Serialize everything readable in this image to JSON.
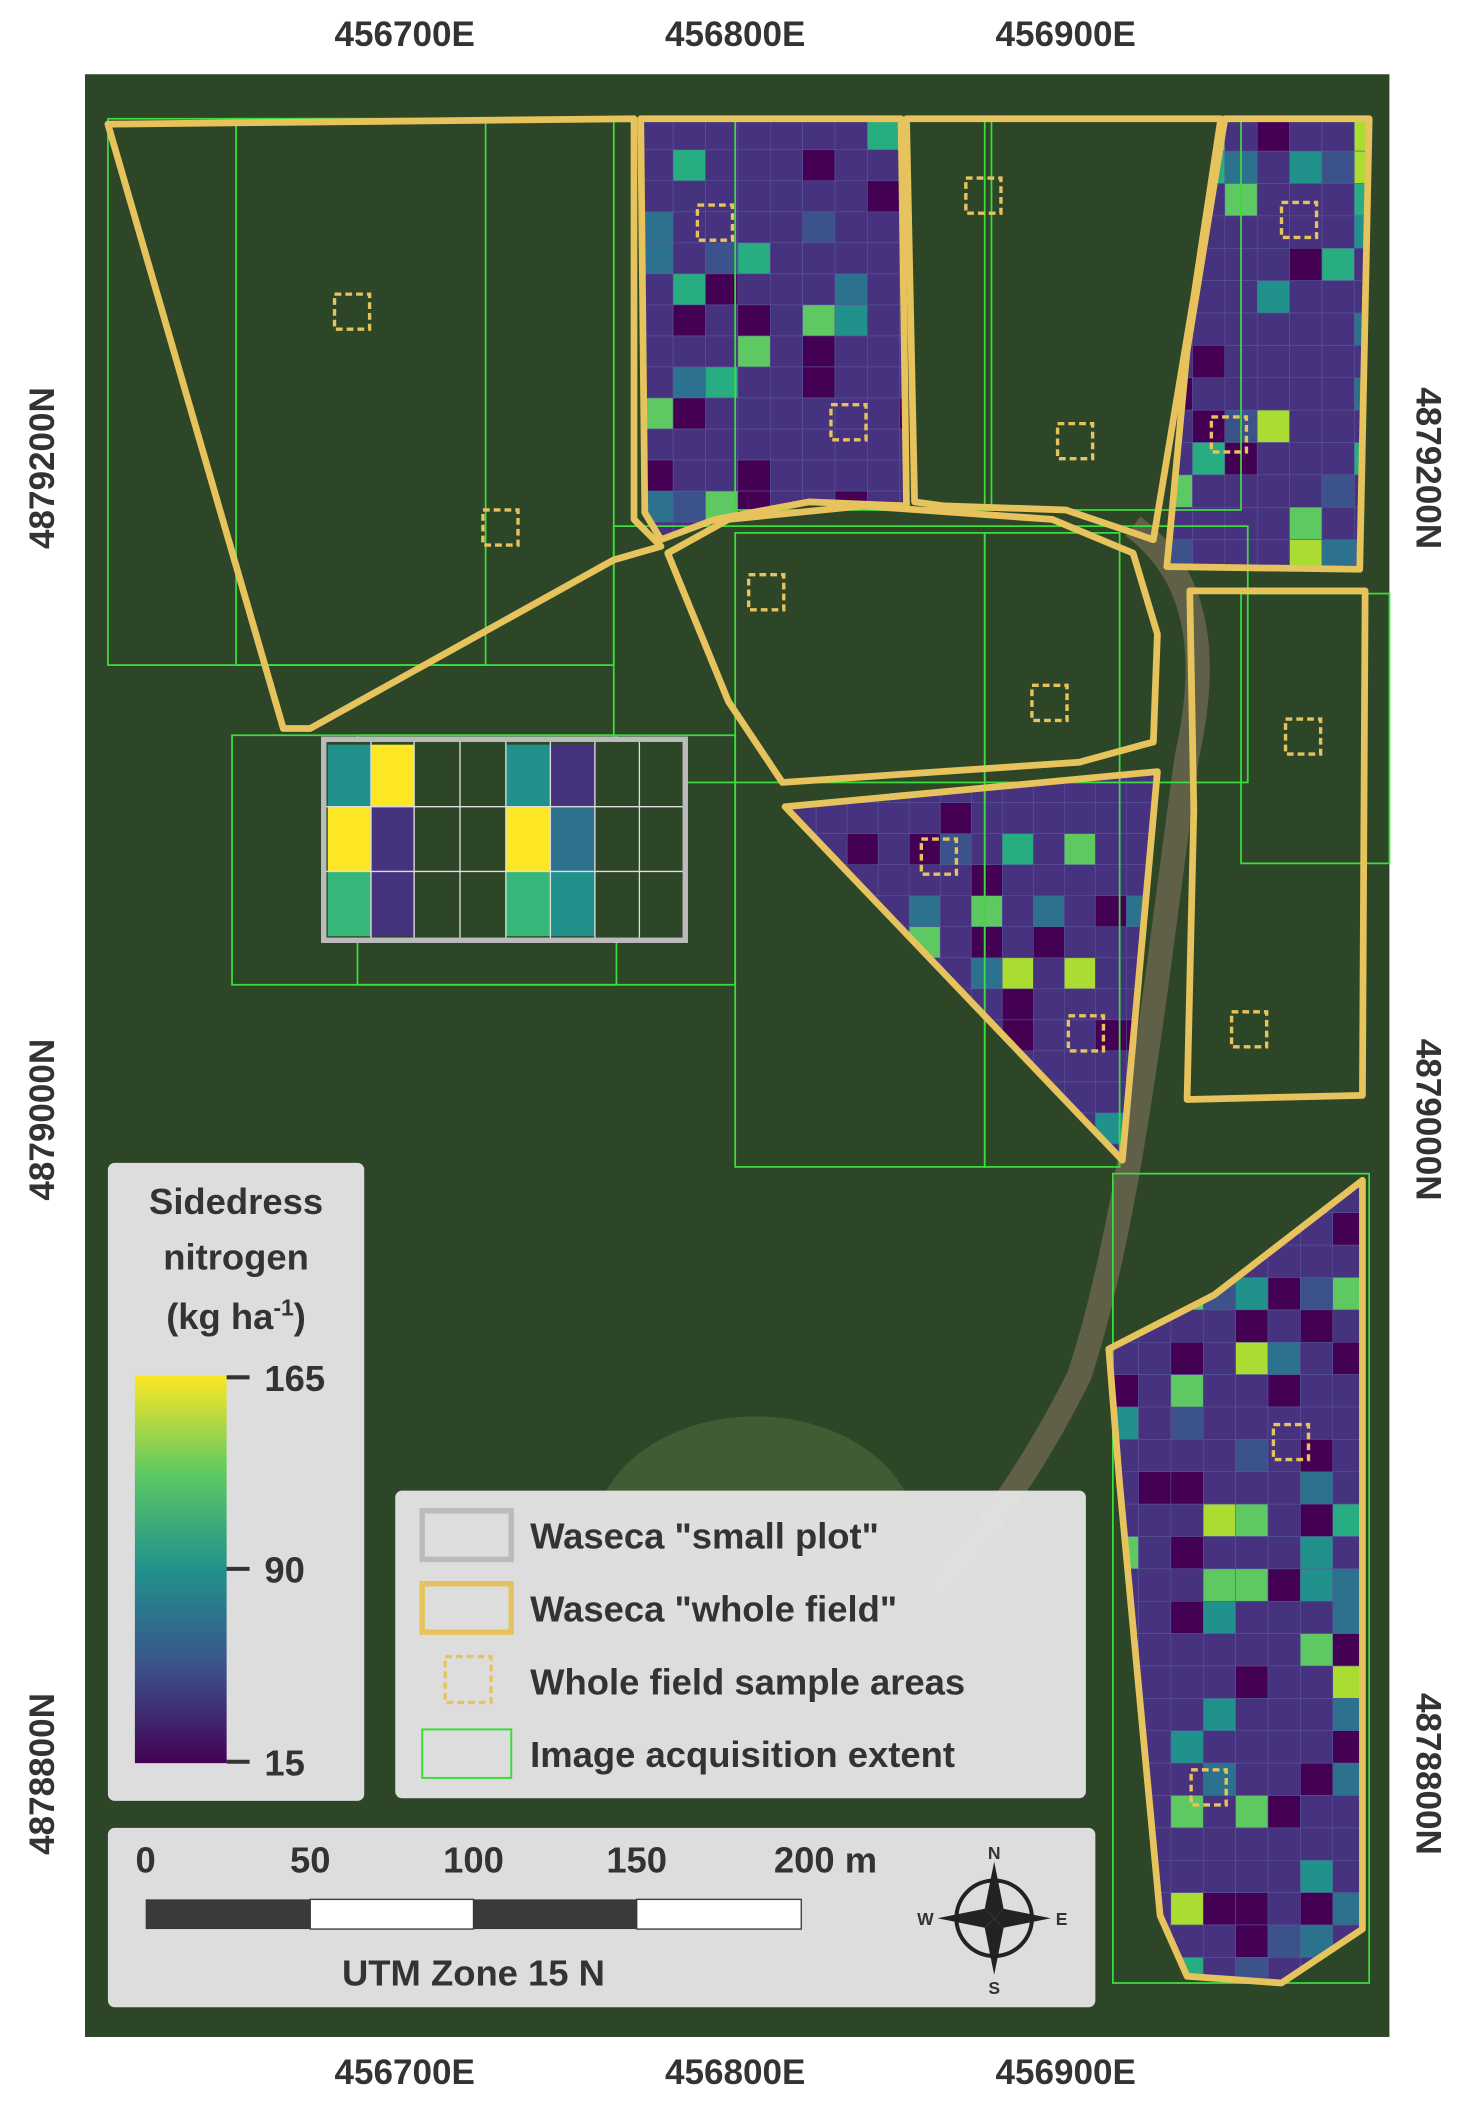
{
  "map": {
    "x_labels_top": [
      "456700E",
      "456800E",
      "456900E"
    ],
    "x_labels_bottom": [
      "456700E",
      "456800E",
      "456900E"
    ],
    "y_labels_left": [
      "4879200N",
      "4879000N",
      "4878800N"
    ],
    "y_labels_right": [
      "4879200N",
      "4879000N",
      "4878800N"
    ]
  },
  "colorbar": {
    "title_line1": "Sidedress",
    "title_line2": "nitrogen",
    "unit": "(kg ha",
    "unit_superscript": "-1",
    "unit_close": ")",
    "ticks": [
      "165",
      "90",
      "15"
    ]
  },
  "legend": {
    "entries": [
      "Waseca \"small plot\"",
      "Waseca \"whole field\"",
      "Whole field sample areas",
      "Image acquisition extent"
    ]
  },
  "scale_bar": {
    "labels": [
      "0",
      "50",
      "100",
      "150",
      "200 m"
    ],
    "caption": "UTM Zone 15 N"
  },
  "compass": {
    "n": "N",
    "s": "S",
    "e": "E",
    "w": "W"
  }
}
